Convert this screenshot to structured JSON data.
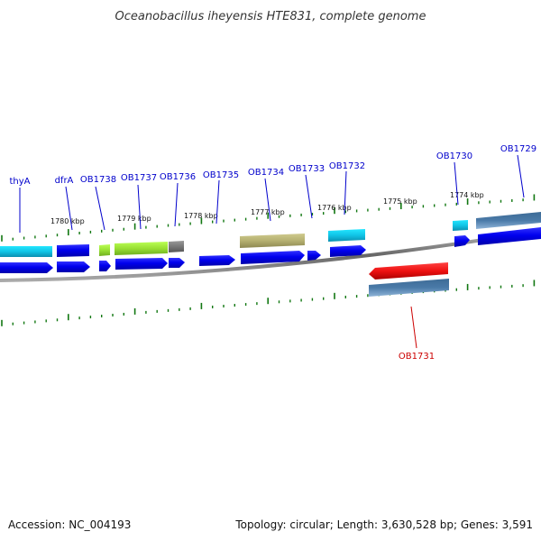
{
  "title": "Oceanobacillus iheyensis HTE831, complete genome",
  "footer": {
    "accession": "Accession: NC_004193",
    "summary": "Topology: circular; Length: 3,630,528 bp; Genes: 3,591"
  },
  "kbp_labels": [
    "1780 kbp",
    "1779 kbp",
    "1778 kbp",
    "1777 kbp",
    "1776 kbp",
    "1775 kbp",
    "1774 kbp"
  ],
  "gene_labels": [
    "thyA",
    "dfrA",
    "OB1738",
    "OB1737",
    "OB1736",
    "OB1735",
    "OB1734",
    "OB1733",
    "OB1732",
    "OB1730",
    "OB1729",
    "OB1731"
  ],
  "colors": {
    "label_blue": "#0000cc",
    "label_red": "#cc0000",
    "tick_green": "#117711",
    "cds_blue": "#0000ee",
    "cyan": "#22ccee",
    "lime": "#99e033",
    "olive": "#b5b070",
    "gray": "#777777",
    "steel": "#4a7aa8",
    "red": "#ee1111",
    "backbone": "#888888"
  }
}
